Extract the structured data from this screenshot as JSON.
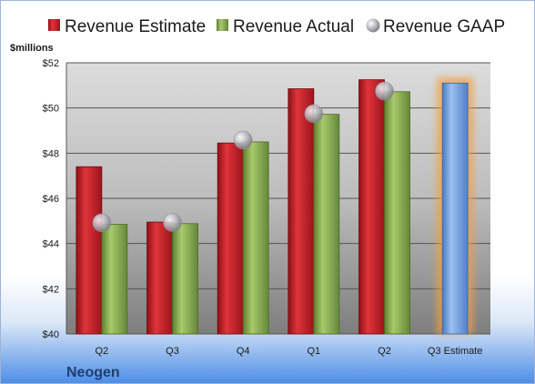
{
  "company": "Neogen",
  "chart_data": {
    "type": "bar",
    "unit_label": "$millions",
    "categories": [
      "Q2",
      "Q3",
      "Q4",
      "Q1",
      "Q2",
      "Q3 Estimate"
    ],
    "series": [
      {
        "name": "Revenue Estimate",
        "color": "#c8202a",
        "values": [
          47.4,
          44.95,
          48.45,
          50.85,
          51.25,
          null
        ]
      },
      {
        "name": "Revenue Actual",
        "color": "#8db050",
        "values": [
          44.85,
          44.88,
          48.5,
          49.72,
          50.72,
          null
        ]
      },
      {
        "name": "Revenue GAAP",
        "color": "#b8b8c0",
        "values": [
          44.92,
          44.93,
          48.58,
          49.75,
          50.75,
          null
        ]
      }
    ],
    "forecast": {
      "category": "Q3 Estimate",
      "value": 51.1,
      "color": "#6a9be0",
      "glow": "#f0a040"
    },
    "ylim": [
      40,
      52
    ],
    "yticks": [
      40,
      42,
      44,
      46,
      48,
      50,
      52
    ],
    "ytick_labels": [
      "$40",
      "$42",
      "$44",
      "$46",
      "$48",
      "$50",
      "$52"
    ],
    "grid": true,
    "legend_position": "top"
  }
}
